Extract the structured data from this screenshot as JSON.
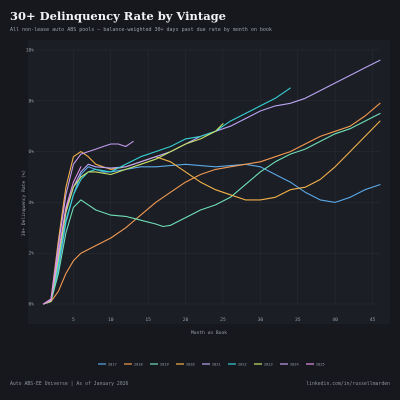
{
  "header": {
    "title": "30+ Delinquency Rate by Vintage",
    "subtitle": "All non-lease auto ABS pools — balance-weighted 30+ days past due rate by month on book"
  },
  "footer": {
    "left": "Auto ABS-EE Universe | As of January 2026",
    "right": "linkedin.com/in/russellmarden"
  },
  "chart_data": {
    "type": "line",
    "title": "30+ Delinquency Rate by Vintage",
    "xlabel": "Month on Book",
    "ylabel": "30+ Delinquency Rate (%)",
    "xlim": [
      0,
      46
    ],
    "ylim": [
      0,
      10
    ],
    "x_ticks": [
      5,
      10,
      15,
      20,
      25,
      30,
      35,
      40,
      45
    ],
    "y_ticks": [
      0,
      2,
      4,
      6,
      8,
      10
    ],
    "y_tick_labels": [
      "0%",
      "2%",
      "4%",
      "6%",
      "8%",
      "10%"
    ],
    "grid": true,
    "legend_position": "bottom",
    "series": [
      {
        "name": "2017",
        "color": "#5aa8e6",
        "points": [
          [
            1,
            0
          ],
          [
            2,
            0.1
          ],
          [
            3,
            1.4
          ],
          [
            4,
            3.2
          ],
          [
            5,
            4.3
          ],
          [
            6,
            5.1
          ],
          [
            7,
            5.4
          ],
          [
            8,
            5.3
          ],
          [
            9,
            5.2
          ],
          [
            10,
            5.2
          ],
          [
            12,
            5.3
          ],
          [
            14,
            5.4
          ],
          [
            16,
            5.4
          ],
          [
            18,
            5.45
          ],
          [
            20,
            5.5
          ],
          [
            22,
            5.45
          ],
          [
            24,
            5.4
          ],
          [
            26,
            5.45
          ],
          [
            28,
            5.5
          ],
          [
            30,
            5.4
          ],
          [
            32,
            5.1
          ],
          [
            34,
            4.8
          ],
          [
            36,
            4.4
          ],
          [
            38,
            4.1
          ],
          [
            40,
            4.0
          ],
          [
            42,
            4.2
          ],
          [
            44,
            4.5
          ],
          [
            46,
            4.7
          ]
        ]
      },
      {
        "name": "2018",
        "color": "#f29a52",
        "points": [
          [
            1,
            0
          ],
          [
            2,
            0.1
          ],
          [
            3,
            0.5
          ],
          [
            4,
            1.2
          ],
          [
            5,
            1.7
          ],
          [
            6,
            2.0
          ],
          [
            8,
            2.3
          ],
          [
            10,
            2.6
          ],
          [
            12,
            3.0
          ],
          [
            14,
            3.5
          ],
          [
            16,
            4.0
          ],
          [
            18,
            4.4
          ],
          [
            20,
            4.8
          ],
          [
            22,
            5.1
          ],
          [
            24,
            5.3
          ],
          [
            26,
            5.4
          ],
          [
            28,
            5.5
          ],
          [
            30,
            5.6
          ],
          [
            32,
            5.8
          ],
          [
            34,
            6.0
          ],
          [
            36,
            6.3
          ],
          [
            38,
            6.6
          ],
          [
            40,
            6.8
          ],
          [
            42,
            7.0
          ],
          [
            44,
            7.4
          ],
          [
            46,
            7.9
          ]
        ]
      },
      {
        "name": "2019",
        "color": "#6fe0b8",
        "points": [
          [
            1,
            0
          ],
          [
            2,
            0.1
          ],
          [
            3,
            1.2
          ],
          [
            4,
            2.8
          ],
          [
            5,
            3.8
          ],
          [
            6,
            4.1
          ],
          [
            7,
            3.9
          ],
          [
            8,
            3.7
          ],
          [
            10,
            3.5
          ],
          [
            12,
            3.45
          ],
          [
            14,
            3.3
          ],
          [
            16,
            3.15
          ],
          [
            17,
            3.05
          ],
          [
            18,
            3.1
          ],
          [
            20,
            3.4
          ],
          [
            22,
            3.7
          ],
          [
            24,
            3.9
          ],
          [
            26,
            4.2
          ],
          [
            28,
            4.7
          ],
          [
            30,
            5.2
          ],
          [
            32,
            5.6
          ],
          [
            34,
            5.9
          ],
          [
            36,
            6.1
          ],
          [
            38,
            6.4
          ],
          [
            40,
            6.7
          ],
          [
            42,
            6.9
          ],
          [
            44,
            7.2
          ],
          [
            46,
            7.5
          ]
        ]
      },
      {
        "name": "2020",
        "color": "#f2b14a",
        "points": [
          [
            1,
            0
          ],
          [
            2,
            0.2
          ],
          [
            3,
            2.5
          ],
          [
            4,
            4.6
          ],
          [
            5,
            5.8
          ],
          [
            6,
            6.0
          ],
          [
            7,
            5.8
          ],
          [
            8,
            5.5
          ],
          [
            10,
            5.3
          ],
          [
            12,
            5.4
          ],
          [
            14,
            5.6
          ],
          [
            16,
            5.8
          ],
          [
            18,
            5.6
          ],
          [
            20,
            5.2
          ],
          [
            22,
            4.8
          ],
          [
            24,
            4.5
          ],
          [
            26,
            4.3
          ],
          [
            28,
            4.1
          ],
          [
            30,
            4.1
          ],
          [
            32,
            4.2
          ],
          [
            34,
            4.5
          ],
          [
            36,
            4.6
          ],
          [
            38,
            4.9
          ],
          [
            40,
            5.4
          ],
          [
            42,
            6.0
          ],
          [
            44,
            6.6
          ],
          [
            46,
            7.2
          ]
        ]
      },
      {
        "name": "2021",
        "color": "#b9a4f2",
        "points": [
          [
            1,
            0
          ],
          [
            2,
            0.15
          ],
          [
            3,
            2.0
          ],
          [
            4,
            3.7
          ],
          [
            5,
            4.6
          ],
          [
            6,
            5.2
          ],
          [
            7,
            5.5
          ],
          [
            8,
            5.4
          ],
          [
            10,
            5.35
          ],
          [
            12,
            5.4
          ],
          [
            14,
            5.6
          ],
          [
            16,
            5.8
          ],
          [
            18,
            6.0
          ],
          [
            20,
            6.3
          ],
          [
            22,
            6.6
          ],
          [
            24,
            6.8
          ],
          [
            26,
            7.0
          ],
          [
            28,
            7.3
          ],
          [
            30,
            7.6
          ],
          [
            32,
            7.8
          ],
          [
            34,
            7.9
          ],
          [
            36,
            8.1
          ],
          [
            38,
            8.4
          ],
          [
            40,
            8.7
          ],
          [
            42,
            9.0
          ],
          [
            44,
            9.3
          ],
          [
            46,
            9.6
          ]
        ]
      },
      {
        "name": "2022",
        "color": "#36d1d6",
        "points": [
          [
            1,
            0
          ],
          [
            2,
            0.1
          ],
          [
            3,
            1.6
          ],
          [
            4,
            3.3
          ],
          [
            5,
            4.3
          ],
          [
            6,
            4.9
          ],
          [
            7,
            5.2
          ],
          [
            8,
            5.3
          ],
          [
            10,
            5.2
          ],
          [
            12,
            5.5
          ],
          [
            14,
            5.8
          ],
          [
            16,
            6.0
          ],
          [
            18,
            6.2
          ],
          [
            20,
            6.5
          ],
          [
            22,
            6.6
          ],
          [
            24,
            6.8
          ],
          [
            26,
            7.2
          ],
          [
            28,
            7.5
          ],
          [
            30,
            7.8
          ],
          [
            32,
            8.1
          ],
          [
            34,
            8.5
          ]
        ]
      },
      {
        "name": "2023",
        "color": "#c7e36a",
        "points": [
          [
            1,
            0
          ],
          [
            2,
            0.1
          ],
          [
            3,
            1.8
          ],
          [
            4,
            3.6
          ],
          [
            5,
            4.6
          ],
          [
            6,
            5.0
          ],
          [
            7,
            5.2
          ],
          [
            8,
            5.2
          ],
          [
            10,
            5.1
          ],
          [
            12,
            5.3
          ],
          [
            14,
            5.5
          ],
          [
            16,
            5.7
          ],
          [
            18,
            6.0
          ],
          [
            20,
            6.3
          ],
          [
            22,
            6.5
          ],
          [
            24,
            6.8
          ],
          [
            25,
            7.1
          ]
        ]
      },
      {
        "name": "2024",
        "color": "#c59cf0",
        "points": [
          [
            1,
            0
          ],
          [
            2,
            0.2
          ],
          [
            3,
            2.3
          ],
          [
            4,
            4.3
          ],
          [
            5,
            5.5
          ],
          [
            6,
            5.9
          ],
          [
            7,
            6.0
          ],
          [
            8,
            6.1
          ],
          [
            9,
            6.2
          ],
          [
            10,
            6.3
          ],
          [
            11,
            6.3
          ],
          [
            12,
            6.2
          ],
          [
            13,
            6.4
          ]
        ]
      },
      {
        "name": "2025",
        "color": "#e28fe6",
        "points": [
          [
            1,
            0
          ],
          [
            2,
            0.15
          ],
          [
            3,
            2.0
          ],
          [
            4,
            3.8
          ],
          [
            5,
            4.8
          ],
          [
            6,
            5.4
          ]
        ]
      }
    ]
  }
}
